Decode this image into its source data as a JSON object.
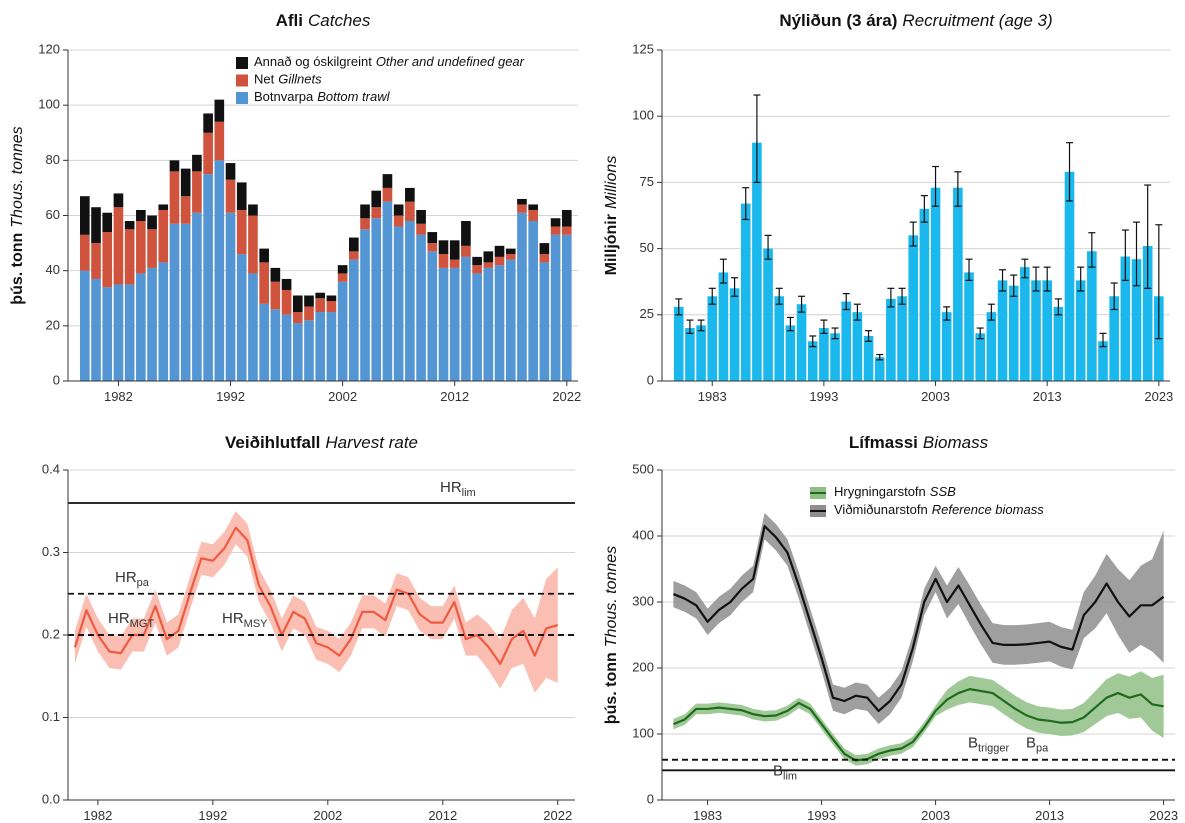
{
  "chart_data": [
    {
      "type": "bar",
      "stacked": true,
      "title": "Afli",
      "title_en": "Catches",
      "ylabel": "þús. tonn",
      "ylabel_en": "Thous. tonnes",
      "x": [
        1979,
        1980,
        1981,
        1982,
        1983,
        1984,
        1985,
        1986,
        1987,
        1988,
        1989,
        1990,
        1991,
        1992,
        1993,
        1994,
        1995,
        1996,
        1997,
        1998,
        1999,
        2000,
        2001,
        2002,
        2003,
        2004,
        2005,
        2006,
        2007,
        2008,
        2009,
        2010,
        2011,
        2012,
        2013,
        2014,
        2015,
        2016,
        2017,
        2018,
        2019,
        2020,
        2021,
        2022
      ],
      "xlim": [
        1977.5,
        2023
      ],
      "xticks": [
        1982,
        1992,
        2002,
        2012,
        2022
      ],
      "ylim": [
        0,
        120
      ],
      "yticks": [
        0,
        20,
        40,
        60,
        80,
        100,
        120
      ],
      "grid": true,
      "legend": "upper right",
      "series": [
        {
          "name": "Botnvarpa",
          "name_en": "Bottom trawl",
          "color": "#5495d3",
          "values": [
            40,
            37,
            34,
            35,
            35,
            39,
            41,
            43,
            57,
            57,
            61,
            75,
            80,
            61,
            46,
            39,
            28,
            26,
            24,
            21,
            22,
            25,
            25,
            36,
            44,
            55,
            59,
            65,
            56,
            58,
            53,
            47,
            41,
            41,
            45,
            39,
            41,
            42,
            44,
            61,
            58,
            43,
            53,
            53
          ]
        },
        {
          "name": "Net",
          "name_en": "Gillnets",
          "color": "#d0533d",
          "values": [
            13,
            13,
            20,
            28,
            20,
            19,
            14,
            19,
            19,
            10,
            15,
            15,
            14,
            12,
            16,
            21,
            15,
            10,
            9,
            4,
            5,
            5,
            4,
            3,
            3,
            4,
            4,
            5,
            4,
            7,
            4,
            3,
            5,
            3,
            4,
            3,
            2,
            3,
            2,
            3,
            4,
            3,
            3,
            3
          ]
        },
        {
          "name": "Annað og óskilgreint",
          "name_en": "Other and undefined gear",
          "color": "#111111",
          "values": [
            14,
            13,
            7,
            5,
            3,
            4,
            5,
            2,
            4,
            10,
            6,
            7,
            8,
            6,
            10,
            4,
            5,
            5,
            4,
            6,
            4,
            2,
            2,
            3,
            5,
            5,
            6,
            5,
            4,
            5,
            5,
            4,
            5,
            7,
            9,
            3,
            4,
            4,
            2,
            2,
            2,
            4,
            3,
            6
          ]
        }
      ]
    },
    {
      "type": "bar",
      "title": "Nýliðun (3 ára)",
      "title_en": "Recruitment (age 3)",
      "ylabel": "Milljónir",
      "ylabel_en": "Millions",
      "x": [
        1980,
        1981,
        1982,
        1983,
        1984,
        1985,
        1986,
        1987,
        1988,
        1989,
        1990,
        1991,
        1992,
        1993,
        1994,
        1995,
        1996,
        1997,
        1998,
        1999,
        2000,
        2001,
        2002,
        2003,
        2004,
        2005,
        2006,
        2007,
        2008,
        2009,
        2010,
        2011,
        2012,
        2013,
        2014,
        2015,
        2016,
        2017,
        2018,
        2019,
        2020,
        2021,
        2022,
        2023
      ],
      "xlim": [
        1978.5,
        2024
      ],
      "xticks": [
        1983,
        1993,
        2003,
        2013,
        2023
      ],
      "ylim": [
        0,
        125
      ],
      "yticks": [
        0,
        25,
        50,
        75,
        100,
        125
      ],
      "grid": true,
      "series": [
        {
          "color": "#1ab8ec",
          "values": [
            28,
            20,
            21,
            32,
            41,
            35,
            67,
            90,
            50,
            32,
            21,
            29,
            15,
            20,
            18,
            30,
            26,
            17,
            9,
            31,
            32,
            55,
            65,
            73,
            26,
            73,
            41,
            18,
            26,
            38,
            36,
            43,
            38,
            38,
            28,
            79,
            38,
            49,
            15,
            32,
            47,
            46,
            51,
            32
          ],
          "lower": [
            25,
            18,
            19,
            29,
            37,
            32,
            61,
            75,
            46,
            29,
            19,
            26,
            13,
            18,
            16,
            27,
            23,
            15,
            8,
            28,
            29,
            51,
            60,
            66,
            23,
            66,
            38,
            16,
            23,
            34,
            32,
            39,
            34,
            34,
            25,
            68,
            34,
            43,
            13,
            27,
            38,
            36,
            35,
            16
          ],
          "upper": [
            31,
            23,
            23,
            35,
            46,
            39,
            73,
            108,
            55,
            35,
            24,
            32,
            17,
            23,
            20,
            33,
            29,
            19,
            10,
            35,
            35,
            60,
            70,
            81,
            28,
            79,
            46,
            20,
            29,
            42,
            40,
            46,
            43,
            43,
            31,
            90,
            43,
            56,
            18,
            37,
            57,
            60,
            74,
            59
          ]
        }
      ]
    },
    {
      "type": "line",
      "title": "Veiðihlutfall",
      "title_en": "Harvest rate",
      "x": [
        1980,
        1981,
        1982,
        1983,
        1984,
        1985,
        1986,
        1987,
        1988,
        1989,
        1990,
        1991,
        1992,
        1993,
        1994,
        1995,
        1996,
        1997,
        1998,
        1999,
        2000,
        2001,
        2002,
        2003,
        2004,
        2005,
        2006,
        2007,
        2008,
        2009,
        2010,
        2011,
        2012,
        2013,
        2014,
        2015,
        2016,
        2017,
        2018,
        2019,
        2020,
        2021,
        2022
      ],
      "xlim": [
        1979.4,
        2023.5
      ],
      "xticks": [
        1982,
        1992,
        2002,
        2012,
        2022
      ],
      "ylim": [
        0,
        0.4
      ],
      "yticks": [
        {
          "value": 0,
          "label": "0.0"
        },
        0.1,
        0.2,
        0.3,
        0.4
      ],
      "grid": true,
      "series": [
        {
          "color": "#f05a40",
          "band_color": "#f9b3a6",
          "values": [
            0.185,
            0.23,
            0.2,
            0.18,
            0.178,
            0.2,
            0.2,
            0.235,
            0.195,
            0.205,
            0.25,
            0.293,
            0.29,
            0.305,
            0.33,
            0.315,
            0.26,
            0.235,
            0.2,
            0.228,
            0.22,
            0.19,
            0.185,
            0.175,
            0.195,
            0.228,
            0.228,
            0.218,
            0.255,
            0.25,
            0.225,
            0.215,
            0.215,
            0.24,
            0.195,
            0.2,
            0.185,
            0.165,
            0.195,
            0.205,
            0.175,
            0.208,
            0.212
          ],
          "lower": [
            0.165,
            0.21,
            0.18,
            0.16,
            0.158,
            0.18,
            0.18,
            0.215,
            0.175,
            0.185,
            0.23,
            0.273,
            0.27,
            0.285,
            0.31,
            0.295,
            0.24,
            0.215,
            0.18,
            0.208,
            0.2,
            0.17,
            0.165,
            0.155,
            0.175,
            0.208,
            0.208,
            0.198,
            0.235,
            0.23,
            0.205,
            0.195,
            0.195,
            0.22,
            0.175,
            0.175,
            0.157,
            0.135,
            0.16,
            0.165,
            0.13,
            0.148,
            0.142
          ],
          "upper": [
            0.205,
            0.25,
            0.22,
            0.2,
            0.198,
            0.22,
            0.22,
            0.255,
            0.215,
            0.225,
            0.27,
            0.313,
            0.31,
            0.325,
            0.35,
            0.335,
            0.28,
            0.255,
            0.22,
            0.248,
            0.24,
            0.21,
            0.205,
            0.195,
            0.215,
            0.248,
            0.248,
            0.238,
            0.275,
            0.27,
            0.245,
            0.235,
            0.235,
            0.26,
            0.215,
            0.225,
            0.213,
            0.195,
            0.23,
            0.245,
            0.22,
            0.268,
            0.282
          ]
        }
      ],
      "reference_lines": [
        {
          "value": 0.36,
          "label": "HR",
          "sub": "lim",
          "style": "solid"
        },
        {
          "value": 0.25,
          "label": "HR",
          "sub": "pa",
          "style": "dashed"
        },
        {
          "value": 0.2,
          "label": "HR",
          "sub": "MGT",
          "style": "dashed"
        },
        {
          "value": 0.2,
          "label": "HR",
          "sub": "MSY",
          "style": "dashed"
        }
      ]
    },
    {
      "type": "line",
      "title": "Lífmassi",
      "title_en": "Biomass",
      "ylabel": "þús. tonn",
      "ylabel_en": "Thous. tonnes",
      "x": [
        1980,
        1981,
        1982,
        1983,
        1984,
        1985,
        1986,
        1987,
        1988,
        1989,
        1990,
        1991,
        1992,
        1993,
        1994,
        1995,
        1996,
        1997,
        1998,
        1999,
        2000,
        2001,
        2002,
        2003,
        2004,
        2005,
        2006,
        2007,
        2008,
        2009,
        2010,
        2011,
        2012,
        2013,
        2014,
        2015,
        2016,
        2017,
        2018,
        2019,
        2020,
        2021,
        2022,
        2023
      ],
      "xlim": [
        1979,
        2024
      ],
      "xticks": [
        1983,
        1993,
        2003,
        2013,
        2023
      ],
      "ylim": [
        0,
        500
      ],
      "yticks": [
        0,
        100,
        200,
        300,
        400,
        500
      ],
      "grid": true,
      "legend": "upper center",
      "series": [
        {
          "name": "Hrygningarstofn",
          "name_en": "SSB",
          "color": "#1e6b1e",
          "band_color": "#8fbf85",
          "values": [
            115,
            122,
            138,
            138,
            140,
            138,
            136,
            130,
            127,
            128,
            135,
            147,
            138,
            115,
            92,
            70,
            60,
            62,
            70,
            75,
            78,
            88,
            110,
            135,
            152,
            162,
            168,
            165,
            162,
            150,
            138,
            128,
            122,
            120,
            117,
            118,
            125,
            140,
            155,
            162,
            155,
            160,
            145,
            142
          ],
          "lower": [
            107,
            114,
            130,
            130,
            132,
            130,
            128,
            122,
            119,
            120,
            127,
            139,
            130,
            107,
            84,
            62,
            52,
            54,
            62,
            67,
            70,
            80,
            102,
            127,
            137,
            144,
            148,
            145,
            142,
            130,
            118,
            108,
            102,
            100,
            97,
            98,
            103,
            115,
            127,
            132,
            123,
            125,
            105,
            94
          ],
          "upper": [
            123,
            130,
            146,
            146,
            148,
            146,
            144,
            138,
            135,
            136,
            143,
            155,
            146,
            123,
            100,
            78,
            68,
            70,
            78,
            83,
            86,
            96,
            118,
            143,
            167,
            180,
            188,
            185,
            182,
            170,
            158,
            148,
            142,
            140,
            137,
            138,
            147,
            165,
            183,
            192,
            187,
            195,
            185,
            190
          ]
        },
        {
          "name": "Viðmiðunarstofn",
          "name_en": "Reference biomass",
          "color": "#111111",
          "band_color": "#8e8e8e",
          "values": [
            312,
            305,
            295,
            270,
            288,
            300,
            320,
            335,
            415,
            398,
            375,
            325,
            270,
            215,
            155,
            150,
            158,
            155,
            135,
            150,
            175,
            230,
            300,
            335,
            300,
            325,
            295,
            265,
            238,
            235,
            235,
            236,
            238,
            240,
            232,
            228,
            280,
            300,
            328,
            300,
            278,
            295,
            295,
            308
          ],
          "lower": [
            292,
            285,
            275,
            250,
            268,
            280,
            300,
            315,
            395,
            378,
            355,
            305,
            250,
            195,
            135,
            130,
            138,
            135,
            115,
            130,
            155,
            210,
            280,
            315,
            275,
            297,
            265,
            235,
            208,
            205,
            205,
            206,
            208,
            210,
            202,
            198,
            245,
            260,
            283,
            250,
            223,
            235,
            225,
            208
          ],
          "upper": [
            332,
            325,
            315,
            290,
            308,
            320,
            340,
            355,
            435,
            418,
            395,
            345,
            290,
            235,
            175,
            170,
            178,
            175,
            155,
            170,
            195,
            250,
            320,
            355,
            325,
            353,
            325,
            295,
            268,
            265,
            265,
            266,
            268,
            270,
            262,
            258,
            315,
            340,
            373,
            350,
            333,
            355,
            365,
            408
          ]
        }
      ],
      "reference_lines": [
        {
          "value": 61,
          "label": "B",
          "sub": "trigger",
          "style": "dashed"
        },
        {
          "value": 61,
          "label": "B",
          "sub": "pa",
          "style": "dashed"
        },
        {
          "value": 45,
          "label": "B",
          "sub": "lim",
          "style": "solid"
        }
      ]
    }
  ]
}
